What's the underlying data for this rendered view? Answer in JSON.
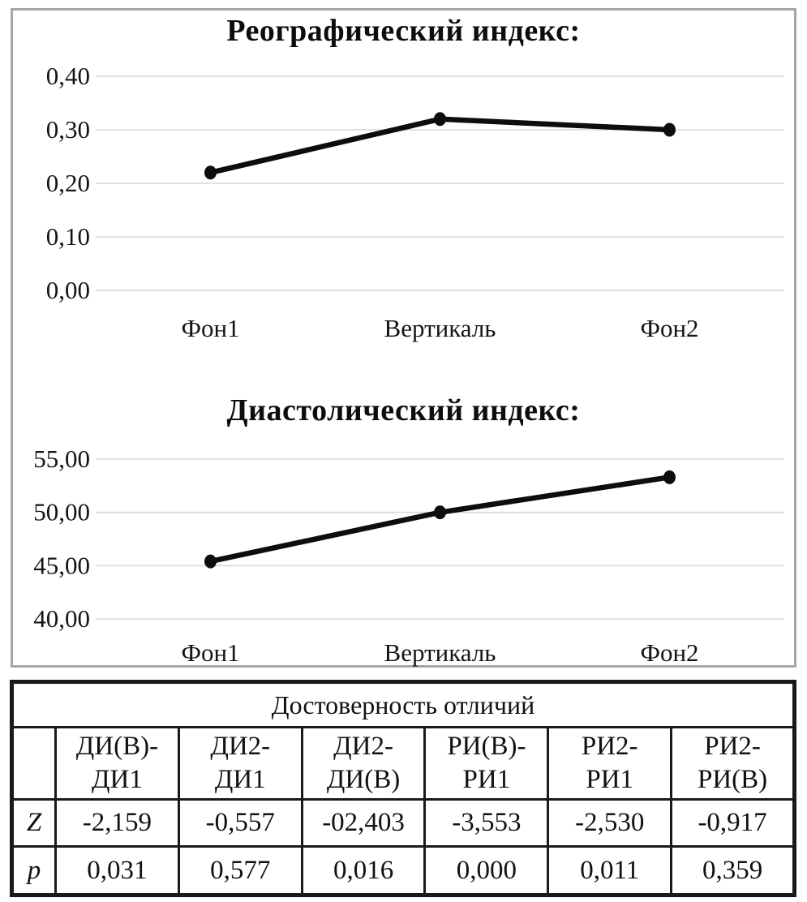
{
  "chart_data": [
    {
      "type": "line",
      "title": "Реографический индекс:",
      "categories": [
        "Фон1",
        "Вертикаль",
        "Фон2"
      ],
      "values": [
        0.22,
        0.32,
        0.3
      ],
      "ylim": [
        0.0,
        0.4
      ],
      "yticks": [
        {
          "value": 0.4,
          "label": "0,40"
        },
        {
          "value": 0.3,
          "label": "0,30"
        },
        {
          "value": 0.2,
          "label": "0,20"
        },
        {
          "value": 0.1,
          "label": "0,10"
        },
        {
          "value": 0.0,
          "label": "0,00"
        }
      ],
      "grid": true,
      "legend": false,
      "marker": "filled-circle",
      "line_color": "#0d0d0d",
      "grid_color": "#d9d9d9"
    },
    {
      "type": "line",
      "title": "Диастолический индекс:",
      "categories": [
        "Фон1",
        "Вертикаль",
        "Фон2"
      ],
      "values": [
        45.4,
        50.0,
        53.3
      ],
      "ylim": [
        40.0,
        55.0
      ],
      "yticks": [
        {
          "value": 55.0,
          "label": "55,00"
        },
        {
          "value": 50.0,
          "label": "50,00"
        },
        {
          "value": 45.0,
          "label": "45,00"
        },
        {
          "value": 40.0,
          "label": "40,00"
        }
      ],
      "grid": true,
      "legend": false,
      "marker": "filled-circle",
      "line_color": "#0d0d0d",
      "grid_color": "#d9d9d9"
    }
  ],
  "table": {
    "title": "Достоверность отличий",
    "corner_label": "",
    "columns": [
      "ДИ(В)-\nДИ1",
      "ДИ2-\nДИ1",
      "ДИ2-\nДИ(В)",
      "РИ(В)-\nРИ1",
      "РИ2-\nРИ1",
      "РИ2-\nРИ(В)"
    ],
    "rows": [
      {
        "label": "Z",
        "values": [
          "-2,159",
          "-0,557",
          "-02,403",
          "-3,553",
          "-2,530",
          "-0,917"
        ]
      },
      {
        "label": "p",
        "values": [
          "0,031",
          "0,577",
          "0,016",
          "0,000",
          "0,011",
          "0,359"
        ]
      }
    ]
  },
  "colors": {
    "line": "#0d0d0d",
    "grid": "#d9d9d9",
    "panel_border": "#a6a6a6",
    "table_border": "#1a1a1a",
    "text": "#111111"
  }
}
